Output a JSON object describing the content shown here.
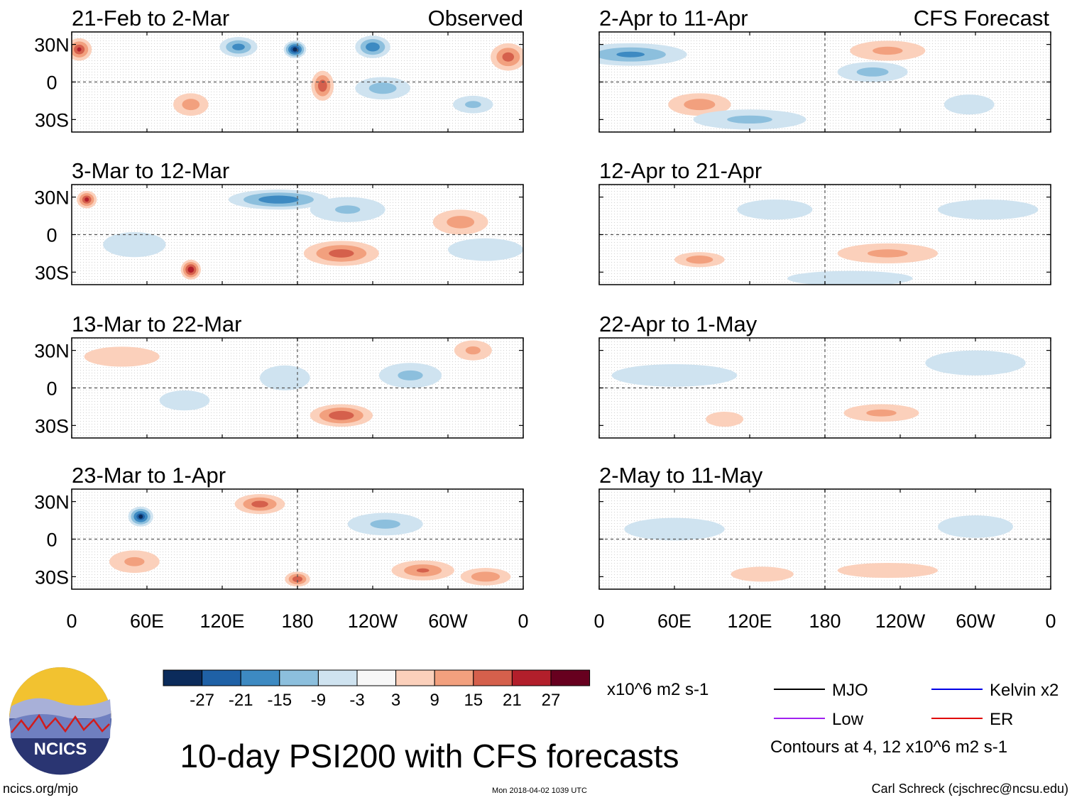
{
  "chart_data": {
    "type": "heatmap",
    "title": "10-day PSI200 with CFS forecasts",
    "variable": "PSI200 anomaly (filled) with MJO / Low / Kelvin x2 / ER contours",
    "units": "x10^6 m2 s-1",
    "source_url": "ncics.org/mjo",
    "timestamp": "Mon 2018-04-02 1039 UTC",
    "author": "Carl Schreck (cjschrec@ncsu.edu)",
    "logo_text": "NCICS",
    "colorbar": {
      "tick_labels": [
        "-27",
        "-21",
        "-15",
        "-9",
        "-3",
        "3",
        "9",
        "15",
        "21",
        "27"
      ],
      "colors": [
        "#0b2b5b",
        "#1f61a6",
        "#3d8ac2",
        "#8cbfdd",
        "#cfe3f0",
        "#f7f7f7",
        "#fbd0bb",
        "#f2a07e",
        "#d5604c",
        "#b21f2b",
        "#67001f"
      ]
    },
    "legend": {
      "items": [
        {
          "label": "MJO",
          "color": "#000000"
        },
        {
          "label": "Kelvin x2",
          "color": "#0000e6"
        },
        {
          "label": "Low",
          "color": "#a020f0"
        },
        {
          "label": "ER",
          "color": "#e00000"
        }
      ],
      "note": "Contours at 4, 12 x10^6 m2 s-1"
    },
    "x_tick_labels": [
      "0",
      "60E",
      "120E",
      "180",
      "120W",
      "60W",
      "0"
    ],
    "y_tick_labels": [
      "30N",
      "0",
      "30S"
    ],
    "x_range_deg": [
      0,
      360
    ],
    "y_range_deg": [
      -40,
      40
    ],
    "columns": [
      {
        "heading": "Observed",
        "panels": [
          "21-Feb to 2-Mar",
          "3-Mar to 12-Mar",
          "13-Mar to 22-Mar",
          "23-Mar to 1-Apr"
        ]
      },
      {
        "heading": "CFS Forecast",
        "panels": [
          "2-Apr to 11-Apr",
          "12-Apr to 21-Apr",
          "22-Apr to 1-May",
          "2-May to 11-May"
        ]
      }
    ],
    "anomaly_centers": [
      [
        [
          178,
          26,
          9,
          7,
          -30
        ],
        [
          133,
          28,
          15,
          8,
          -18
        ],
        [
          240,
          28,
          14,
          9,
          -20
        ],
        [
          6,
          26,
          10,
          9,
          21
        ],
        [
          348,
          20,
          14,
          11,
          18
        ],
        [
          200,
          -3,
          9,
          12,
          20
        ],
        [
          95,
          -18,
          14,
          9,
          12
        ],
        [
          248,
          -5,
          22,
          9,
          -12
        ],
        [
          320,
          -18,
          16,
          7,
          -10
        ]
      ],
      [
        [
          165,
          28,
          40,
          8,
          -20
        ],
        [
          12,
          28,
          8,
          7,
          22
        ],
        [
          95,
          -28,
          8,
          8,
          26
        ],
        [
          215,
          -15,
          30,
          10,
          18
        ],
        [
          310,
          10,
          22,
          10,
          12
        ],
        [
          330,
          -12,
          30,
          9,
          -8
        ],
        [
          220,
          20,
          30,
          10,
          -9
        ],
        [
          50,
          -8,
          25,
          10,
          -6
        ]
      ],
      [
        [
          215,
          -22,
          25,
          9,
          20
        ],
        [
          270,
          10,
          25,
          10,
          -10
        ],
        [
          170,
          8,
          20,
          10,
          -7
        ],
        [
          40,
          25,
          30,
          8,
          8
        ],
        [
          320,
          30,
          15,
          8,
          10
        ],
        [
          90,
          -10,
          20,
          8,
          -6
        ]
      ],
      [
        [
          55,
          18,
          10,
          8,
          -27
        ],
        [
          150,
          28,
          20,
          8,
          18
        ],
        [
          280,
          -25,
          25,
          8,
          15
        ],
        [
          330,
          -30,
          20,
          7,
          14
        ],
        [
          180,
          -32,
          10,
          6,
          20
        ],
        [
          250,
          12,
          30,
          9,
          -10
        ],
        [
          50,
          -18,
          20,
          9,
          10
        ]
      ],
      [
        [
          25,
          22,
          45,
          9,
          -16
        ],
        [
          218,
          8,
          28,
          8,
          -11
        ],
        [
          230,
          25,
          30,
          8,
          10
        ],
        [
          80,
          -18,
          25,
          9,
          12
        ],
        [
          295,
          -18,
          20,
          8,
          -8
        ],
        [
          120,
          -30,
          45,
          8,
          -10
        ]
      ],
      [
        [
          310,
          20,
          40,
          8,
          -7
        ],
        [
          80,
          -20,
          20,
          6,
          13
        ],
        [
          230,
          -15,
          40,
          8,
          10
        ],
        [
          140,
          20,
          30,
          8,
          -5
        ],
        [
          200,
          -35,
          50,
          6,
          -7
        ]
      ],
      [
        [
          60,
          10,
          50,
          9,
          -4
        ],
        [
          225,
          -20,
          30,
          7,
          10
        ],
        [
          100,
          -25,
          15,
          6,
          6
        ],
        [
          300,
          20,
          40,
          10,
          -4
        ]
      ],
      [
        [
          60,
          8,
          40,
          9,
          -3
        ],
        [
          230,
          -25,
          40,
          6,
          8
        ],
        [
          130,
          -28,
          25,
          6,
          5
        ],
        [
          300,
          10,
          30,
          9,
          -3
        ]
      ]
    ]
  }
}
